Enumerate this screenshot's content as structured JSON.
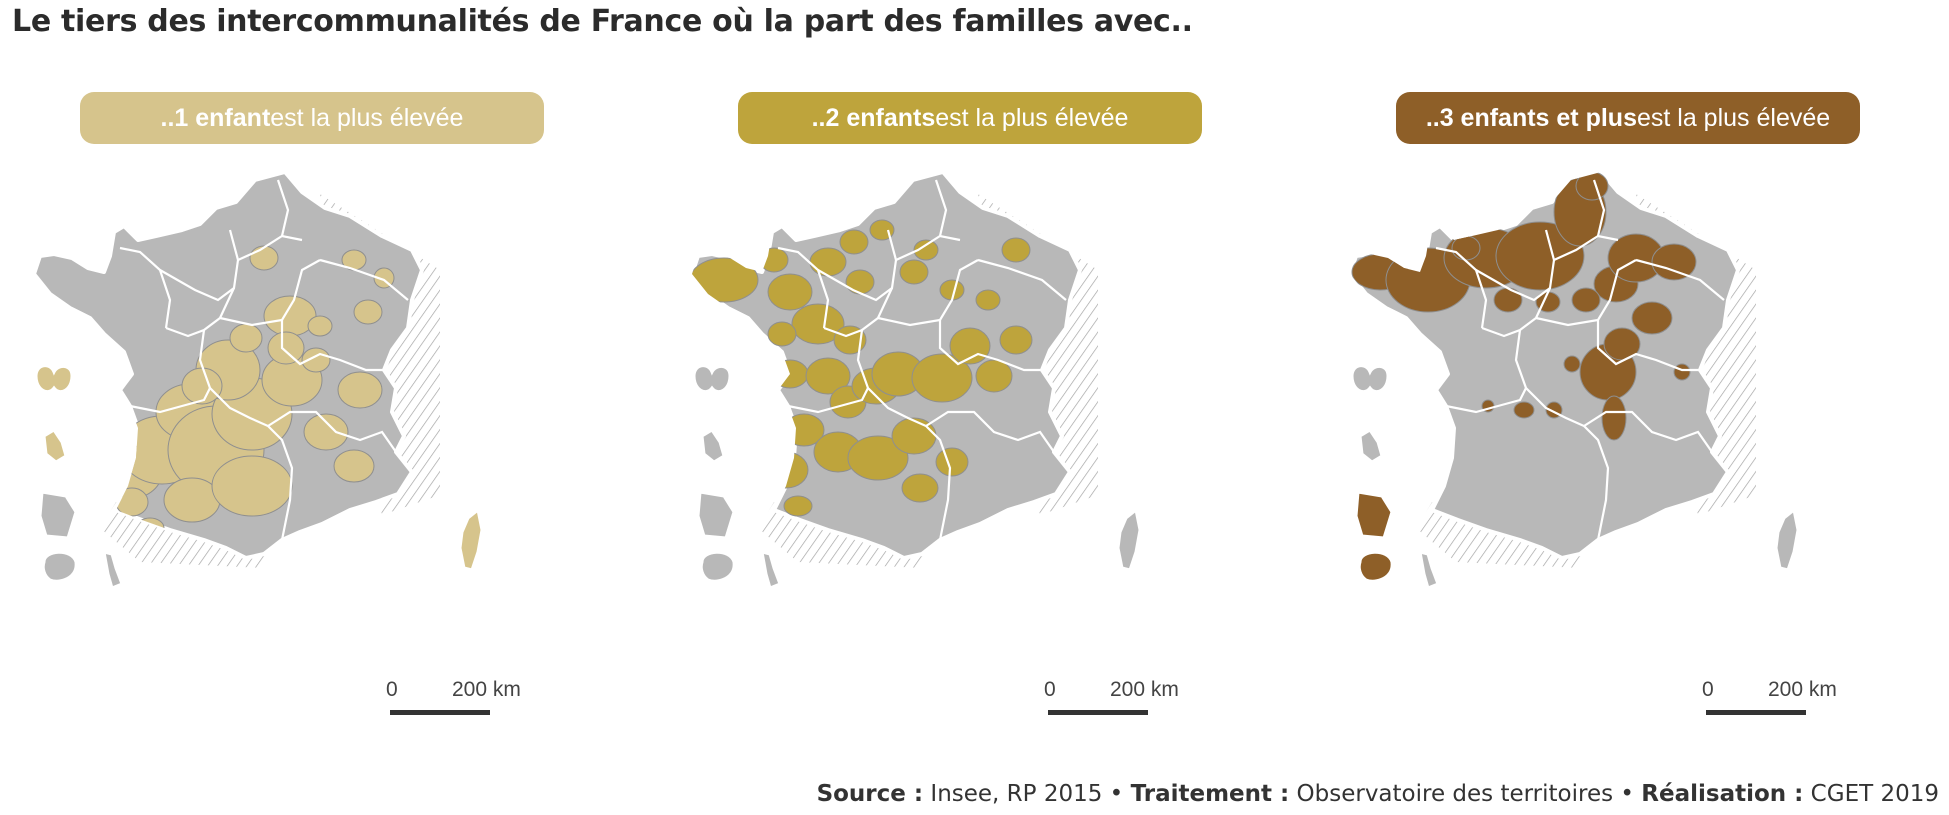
{
  "title": "Le tiers des intercommunalités de France où la part des familles avec..",
  "colors": {
    "base": "#b8b8b8",
    "one_child": "#d6c48c",
    "two_children": "#bea43c",
    "three_plus": "#8e5f28",
    "hatch": "#9a9a9a"
  },
  "panels": [
    {
      "pill_bold": "..1 enfant",
      "pill_rest": " est la plus élevée",
      "color": "#d6c48c",
      "scale_zero": "0",
      "scale_km": "200 km"
    },
    {
      "pill_bold": "..2 enfants",
      "pill_rest": " est la plus élevée",
      "color": "#bea43c",
      "scale_zero": "0",
      "scale_km": "200 km"
    },
    {
      "pill_bold": "..3 enfants et plus",
      "pill_rest": " est la plus élevée",
      "color": "#8e5f28",
      "scale_zero": "0",
      "scale_km": "200 km"
    }
  ],
  "credits": {
    "source_label": "Source :",
    "source_value": " Insee, RP 2015 • ",
    "processing_label": "Traitement :",
    "processing_value": " Observatoire des territoires • ",
    "production_label": "Réalisation :",
    "production_value": " CGET 2019"
  }
}
